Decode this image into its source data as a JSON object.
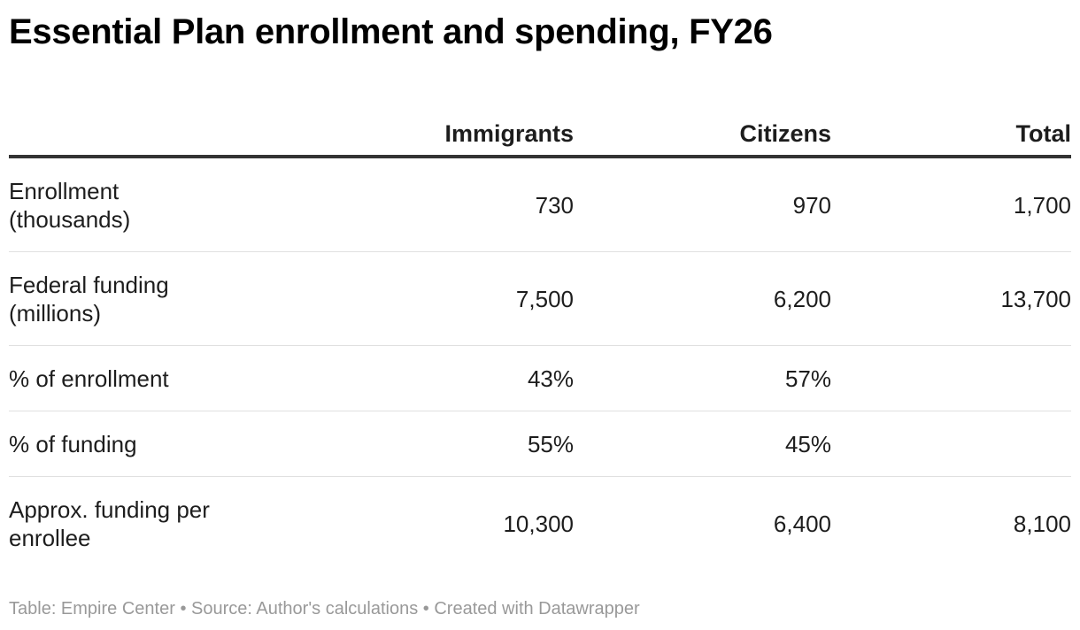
{
  "title": "Essential Plan enrollment and spending, FY26",
  "chart_data": {
    "type": "table",
    "title": "Essential Plan enrollment and spending, FY26",
    "columns": [
      "",
      "Immigrants",
      "Citizens",
      "Total"
    ],
    "rows": [
      {
        "label": "Enrollment (thousands)",
        "values": [
          "730",
          "970",
          "1,700"
        ]
      },
      {
        "label": "Federal funding (millions)",
        "values": [
          "7,500",
          "6,200",
          "13,700"
        ]
      },
      {
        "label": "% of enrollment",
        "values": [
          "43%",
          "57%",
          ""
        ]
      },
      {
        "label": "% of funding",
        "values": [
          "55%",
          "45%",
          ""
        ]
      },
      {
        "label": "Approx. funding per enrollee",
        "values": [
          "10,300",
          "6,400",
          "8,100"
        ]
      }
    ]
  },
  "footer": {
    "table_credit": "Table: Empire Center",
    "separator": "•",
    "source": "Source: Author's calculations",
    "created_with": "Created with Datawrapper"
  },
  "colors": {
    "text": "#1d1d1d",
    "header_rule": "#333333",
    "row_rule": "#e0e0e0",
    "footer_text": "#999999"
  }
}
